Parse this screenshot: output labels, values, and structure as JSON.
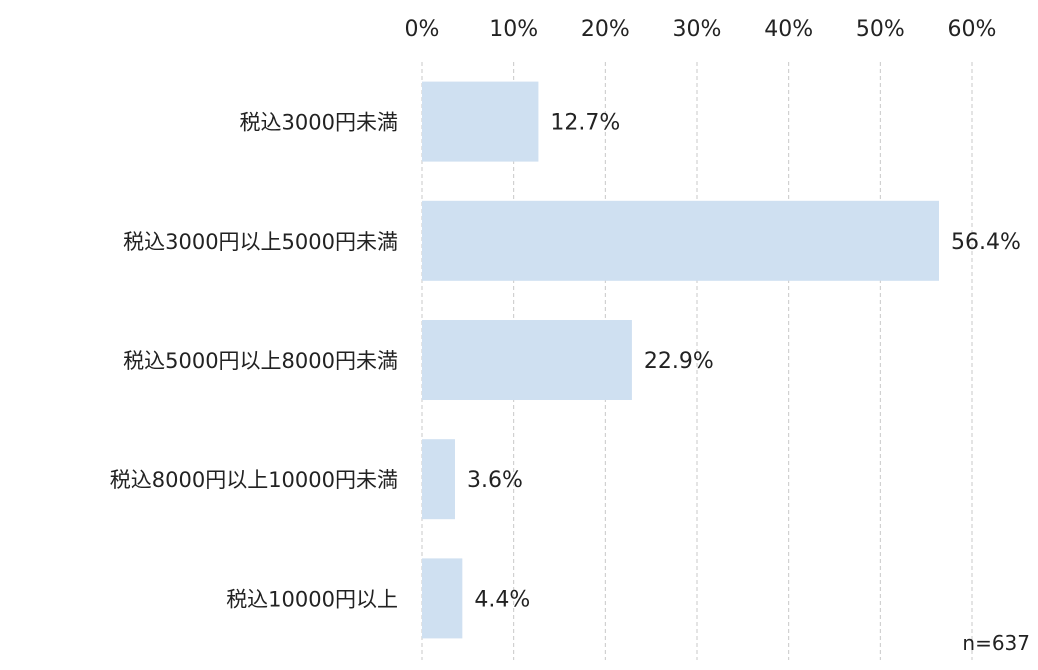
{
  "chart_data": {
    "type": "bar",
    "orientation": "horizontal",
    "categories": [
      "税込3000円未満",
      "税込3000円以上5000円未満",
      "税込5000円以上8000円未満",
      "税込8000円以上10000円未満",
      "税込10000円以上"
    ],
    "values": [
      12.7,
      56.4,
      22.9,
      3.6,
      4.4
    ],
    "value_labels": [
      "12.7%",
      "56.4%",
      "22.9%",
      "3.6%",
      "4.4%"
    ],
    "xlim": [
      0,
      60
    ],
    "xticks": [
      0,
      10,
      20,
      30,
      40,
      50,
      60
    ],
    "xtick_labels": [
      "0%",
      "10%",
      "20%",
      "30%",
      "40%",
      "50%",
      "60%"
    ],
    "xaxis_position": "top",
    "grid": true,
    "bar_color": "#cfe0f1",
    "note": "n=637"
  }
}
